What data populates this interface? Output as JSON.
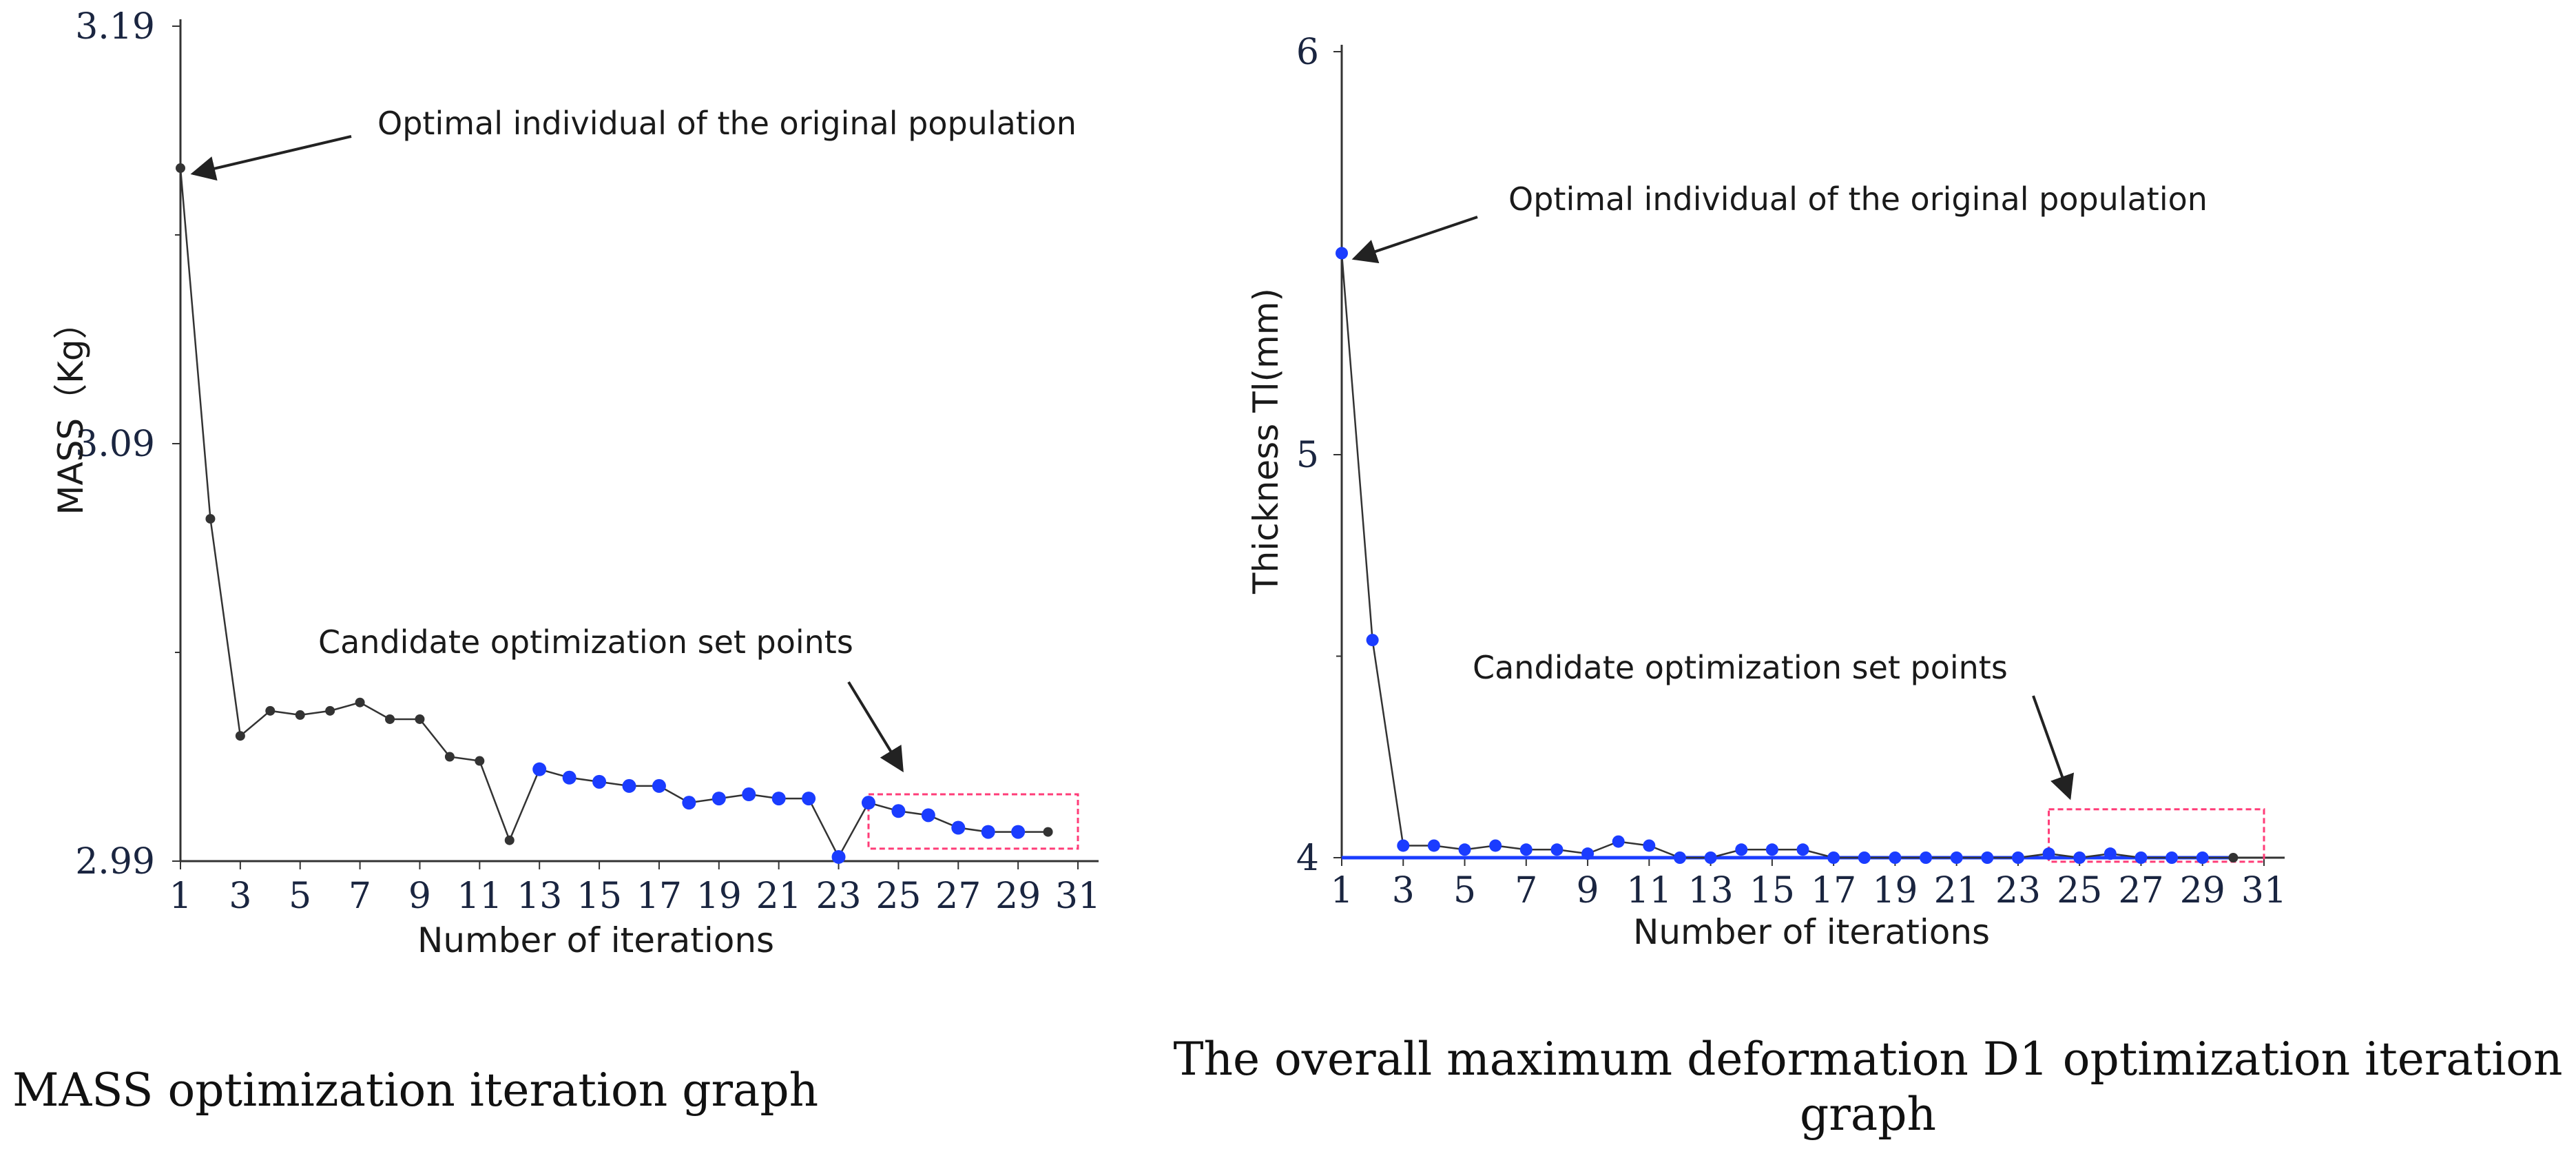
{
  "colors": {
    "grey_series": "#333333",
    "blue_points": "#1a3cff",
    "highlight_box": "#ff3c78",
    "axis": "#333333"
  },
  "chart_data": [
    {
      "type": "line",
      "caption": "MASS optimization iteration graph",
      "xlabel": "Number of iterations",
      "ylabel": "MASS（Kg）",
      "x_ticks": [
        "1",
        "3",
        "5",
        "7",
        "9",
        "11",
        "13",
        "15",
        "17",
        "19",
        "21",
        "23",
        "25",
        "27",
        "29",
        "31"
      ],
      "y_ticks": [
        "2.99",
        "3.09",
        "3.19"
      ],
      "xlim": [
        1,
        31
      ],
      "ylim": [
        2.99,
        3.19
      ],
      "series": [
        {
          "x": [
            1,
            2,
            3,
            4,
            5,
            6,
            7,
            8,
            9,
            10,
            11,
            12,
            13,
            14,
            15,
            16,
            17,
            18,
            19,
            20,
            21,
            22,
            23,
            24,
            25,
            26,
            27,
            28,
            29,
            30
          ],
          "y": [
            3.156,
            3.072,
            3.02,
            3.026,
            3.025,
            3.026,
            3.028,
            3.024,
            3.024,
            3.015,
            3.014,
            2.995,
            3.012,
            3.01,
            3.009,
            3.008,
            3.008,
            3.004,
            3.005,
            3.006,
            3.005,
            3.005,
            2.991,
            3.004,
            3.002,
            3.001,
            2.998,
            2.997,
            2.997,
            2.997
          ],
          "candidate_points": [
            13,
            14,
            15,
            16,
            17,
            18,
            19,
            20,
            21,
            22,
            23,
            24,
            25,
            26,
            27,
            28,
            29
          ]
        }
      ],
      "annotations": [
        {
          "text": "Optimal individual of the original population",
          "x": 1,
          "y": 3.156
        },
        {
          "text": "Candidate optimization set points",
          "x": 25,
          "y": 3.012
        }
      ],
      "highlight_region": {
        "x": [
          24,
          31
        ],
        "y": [
          2.993,
          3.006
        ]
      }
    },
    {
      "type": "line",
      "caption": "The overall maximum deformation D1 optimization iteration graph",
      "xlabel": "Number of iterations",
      "ylabel": "Thickness Tl(mm)",
      "x_ticks": [
        "1",
        "3",
        "5",
        "7",
        "9",
        "11",
        "13",
        "15",
        "17",
        "19",
        "21",
        "23",
        "25",
        "27",
        "29",
        "31"
      ],
      "y_ticks": [
        "4",
        "5",
        "6"
      ],
      "xlim": [
        1,
        31
      ],
      "ylim": [
        4,
        6
      ],
      "series": [
        {
          "x": [
            1,
            2,
            3,
            4,
            5,
            6,
            7,
            8,
            9,
            10,
            11,
            12,
            13,
            14,
            15,
            16,
            17,
            18,
            19,
            20,
            21,
            22,
            23,
            24,
            25,
            26,
            27,
            28,
            29,
            30
          ],
          "y": [
            5.5,
            4.54,
            4.03,
            4.03,
            4.02,
            4.03,
            4.02,
            4.02,
            4.01,
            4.04,
            4.03,
            4.0,
            4.0,
            4.02,
            4.02,
            4.02,
            4.0,
            4.0,
            4.0,
            4.0,
            4.0,
            4.0,
            4.0,
            4.01,
            4.0,
            4.01,
            4.0,
            4.0,
            4.0,
            4.0
          ],
          "candidate_points": [
            1,
            2,
            3,
            4,
            5,
            6,
            7,
            8,
            9,
            10,
            11,
            12,
            13,
            14,
            15,
            16,
            17,
            18,
            19,
            20,
            21,
            22,
            23,
            24,
            25,
            26,
            27,
            28,
            29
          ]
        }
      ],
      "annotations": [
        {
          "text": "Optimal individual of the original population",
          "x": 1,
          "y": 5.5
        },
        {
          "text": "Candidate optimization set points",
          "x": 25,
          "y": 4.12
        }
      ],
      "highlight_region": {
        "x": [
          24,
          31
        ],
        "y": [
          3.99,
          4.12
        ]
      }
    }
  ]
}
